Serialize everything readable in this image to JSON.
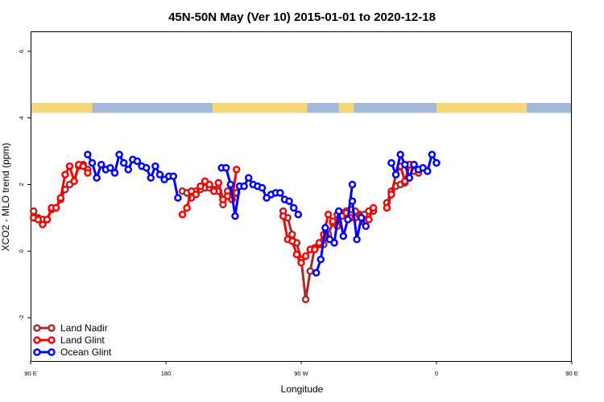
{
  "chart_data": {
    "type": "line",
    "title": "45N-50N May (Ver 10)   2015-01-01 to 2020-12-18",
    "xlabel": "Longitude",
    "ylabel": "XCO2 - MLO trend (ppm)",
    "xlim": [
      90,
      450
    ],
    "ylim": [
      -3.3,
      6.6
    ],
    "xticks": [
      {
        "value": 90,
        "label": "90 E"
      },
      {
        "value": 180,
        "label": "180"
      },
      {
        "value": 270,
        "label": "90 W"
      },
      {
        "value": 360,
        "label": "0"
      },
      {
        "value": 450,
        "label": "90 E"
      },
      {
        "value": 540,
        "label": "180"
      }
    ],
    "yticks": [
      -2,
      0,
      2,
      4,
      6
    ],
    "legend_position": "bottom-left",
    "colors": {
      "land_nadir": "#a52a2a",
      "land_glint": "#ff0000",
      "ocean_glint": "#0000ff",
      "land_band": "#f7d77a",
      "ocean_band": "#a4b8d8"
    },
    "map_band": {
      "land_ranges": [
        [
          90,
          131
        ],
        [
          211,
          274
        ],
        [
          295,
          305
        ],
        [
          360,
          420
        ],
        [
          493,
          546
        ]
      ]
    },
    "series": [
      {
        "name": "Land Nadir",
        "color": "#a52a2a",
        "segments": [
          [
            [
              92,
              1.2
            ],
            [
              95,
              1.0
            ],
            [
              98,
              0.95
            ],
            [
              101,
              0.95
            ],
            [
              104,
              1.25
            ],
            [
              107,
              1.3
            ],
            [
              110,
              1.55
            ],
            [
              113,
              1.85
            ],
            [
              116,
              2.0
            ],
            [
              119,
              2.1
            ],
            [
              122,
              2.55
            ],
            [
              125,
              2.6
            ],
            [
              128,
              2.45
            ]
          ],
          [
            [
              191,
              1.8
            ],
            [
              194,
              1.75
            ],
            [
              197,
              1.6
            ],
            [
              200,
              1.8
            ],
            [
              203,
              1.85
            ],
            [
              206,
              1.9
            ],
            [
              209,
              1.9
            ],
            [
              212,
              1.85
            ],
            [
              215,
              1.8
            ],
            [
              218,
              1.4
            ],
            [
              221,
              1.8
            ],
            [
              224,
              1.65
            ],
            [
              227,
              1.75
            ]
          ],
          [
            [
              258,
              1.2
            ],
            [
              261,
              1.0
            ],
            [
              264,
              0.5
            ],
            [
              267,
              0.25
            ],
            [
              270,
              -0.25
            ],
            [
              273,
              -1.45
            ],
            [
              276,
              -0.6
            ],
            [
              279,
              0.1
            ],
            [
              282,
              0.2
            ],
            [
              285,
              0.2
            ],
            [
              288,
              0.5
            ],
            [
              291,
              0.85
            ],
            [
              294,
              1.1
            ],
            [
              297,
              1.15
            ],
            [
              300,
              1.2
            ],
            [
              303,
              1.25
            ],
            [
              306,
              1.2
            ],
            [
              309,
              1.1
            ],
            [
              312,
              1.1
            ],
            [
              315,
              1.2
            ],
            [
              318,
              1.2
            ]
          ],
          [
            [
              327,
              1.45
            ],
            [
              330,
              1.8
            ],
            [
              333,
              1.95
            ],
            [
              336,
              2.0
            ],
            [
              339,
              2.05
            ],
            [
              342,
              2.6
            ],
            [
              345,
              2.4
            ]
          ]
        ]
      },
      {
        "name": "Land Glint",
        "color": "#ff0000",
        "segments": [
          [
            [
              92,
              1.0
            ],
            [
              95,
              0.95
            ],
            [
              98,
              0.8
            ],
            [
              101,
              0.95
            ],
            [
              104,
              1.3
            ],
            [
              107,
              1.3
            ],
            [
              110,
              1.6
            ],
            [
              113,
              2.3
            ],
            [
              116,
              2.55
            ],
            [
              119,
              2.1
            ],
            [
              122,
              2.6
            ],
            [
              125,
              2.55
            ],
            [
              128,
              2.35
            ]
          ],
          [
            [
              191,
              1.1
            ],
            [
              194,
              1.3
            ],
            [
              197,
              1.8
            ],
            [
              200,
              1.7
            ],
            [
              203,
              1.95
            ],
            [
              206,
              2.1
            ],
            [
              209,
              2.0
            ],
            [
              212,
              1.8
            ],
            [
              215,
              2.05
            ],
            [
              218,
              1.55
            ],
            [
              221,
              1.65
            ],
            [
              224,
              1.55
            ],
            [
              227,
              2.45
            ]
          ],
          [
            [
              258,
              1.05
            ],
            [
              261,
              0.35
            ],
            [
              264,
              0.3
            ],
            [
              267,
              -0.1
            ],
            [
              270,
              -0.35
            ],
            [
              273,
              -0.15
            ],
            [
              276,
              0.05
            ],
            [
              279,
              0.05
            ],
            [
              282,
              0.25
            ],
            [
              285,
              0.5
            ],
            [
              288,
              1.1
            ],
            [
              291,
              0.9
            ],
            [
              294,
              0.75
            ],
            [
              297,
              1.05
            ],
            [
              300,
              1.15
            ],
            [
              303,
              1.0
            ],
            [
              306,
              1.0
            ],
            [
              309,
              1.05
            ],
            [
              312,
              0.85
            ],
            [
              315,
              0.95
            ],
            [
              318,
              1.3
            ]
          ],
          [
            [
              327,
              1.3
            ],
            [
              330,
              1.7
            ],
            [
              333,
              2.3
            ],
            [
              336,
              2.55
            ],
            [
              339,
              2.1
            ],
            [
              342,
              2.6
            ],
            [
              345,
              2.6
            ],
            [
              348,
              2.35
            ]
          ]
        ]
      },
      {
        "name": "Ocean Glint",
        "color": "#0000ff",
        "segments": [
          [
            [
              128,
              2.9
            ],
            [
              131,
              2.65
            ],
            [
              134,
              2.2
            ],
            [
              137,
              2.6
            ],
            [
              140,
              2.45
            ],
            [
              143,
              2.5
            ],
            [
              146,
              2.35
            ],
            [
              149,
              2.9
            ],
            [
              152,
              2.65
            ],
            [
              155,
              2.45
            ],
            [
              158,
              2.75
            ],
            [
              161,
              2.7
            ],
            [
              164,
              2.55
            ],
            [
              167,
              2.5
            ],
            [
              170,
              2.2
            ],
            [
              173,
              2.55
            ],
            [
              176,
              2.3
            ],
            [
              179,
              2.15
            ],
            [
              182,
              2.25
            ],
            [
              185,
              2.25
            ],
            [
              188,
              1.6
            ]
          ],
          [
            [
              217,
              2.5
            ],
            [
              220,
              2.5
            ],
            [
              223,
              2.0
            ],
            [
              226,
              1.05
            ],
            [
              229,
              1.95
            ],
            [
              232,
              1.95
            ],
            [
              235,
              2.2
            ],
            [
              238,
              2.0
            ],
            [
              241,
              1.95
            ],
            [
              244,
              1.9
            ],
            [
              247,
              1.6
            ],
            [
              250,
              1.7
            ],
            [
              253,
              1.75
            ],
            [
              256,
              1.75
            ],
            [
              259,
              1.55
            ],
            [
              262,
              1.5
            ],
            [
              265,
              1.3
            ],
            [
              268,
              1.1
            ]
          ],
          [
            [
              280,
              -0.65
            ],
            [
              283,
              -0.25
            ],
            [
              286,
              0.7
            ],
            [
              289,
              0.35
            ],
            [
              292,
              0.25
            ],
            [
              295,
              1.2
            ],
            [
              298,
              0.45
            ],
            [
              301,
              0.95
            ],
            [
              304,
              2.0
            ]
          ],
          [
            [
              304,
              1.5
            ],
            [
              307,
              0.35
            ],
            [
              310,
              1.0
            ],
            [
              313,
              0.75
            ]
          ],
          [
            [
              330,
              2.65
            ],
            [
              333,
              2.3
            ],
            [
              336,
              2.9
            ],
            [
              339,
              2.6
            ],
            [
              342,
              2.2
            ],
            [
              345,
              2.6
            ],
            [
              348,
              2.45
            ],
            [
              351,
              2.5
            ],
            [
              354,
              2.4
            ],
            [
              357,
              2.9
            ],
            [
              360,
              2.65
            ]
          ]
        ]
      }
    ]
  }
}
